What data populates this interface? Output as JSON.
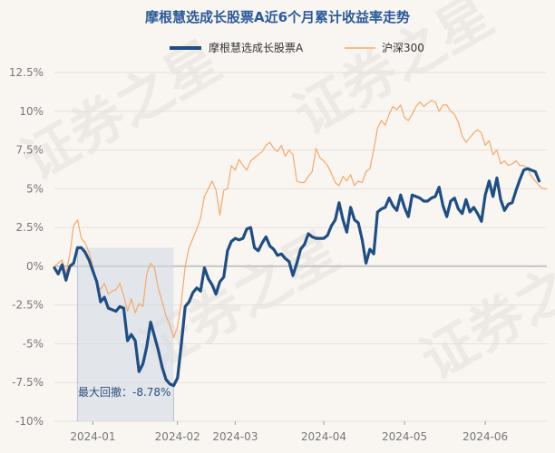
{
  "chart_data": {
    "type": "line",
    "title": "摩根慧选成长股票A近6个月累计收益率走势",
    "xlabel": "",
    "ylabel": "",
    "ylim": [
      -10,
      12.5
    ],
    "yticks": [
      -10,
      -7.5,
      -5,
      -2.5,
      0,
      2.5,
      5,
      7.5,
      10,
      12.5
    ],
    "ytick_labels": [
      "-10%",
      "-7.5%",
      "-5%",
      "-2.5%",
      "0%",
      "2.5%",
      "5%",
      "7.5%",
      "10%",
      "12.5%"
    ],
    "xlim": [
      0,
      128
    ],
    "xticks": [
      {
        "label": "2024-01",
        "index": 10
      },
      {
        "label": "2024-02",
        "index": 32
      },
      {
        "label": "2024-03",
        "index": 47
      },
      {
        "label": "2024-04",
        "index": 70
      },
      {
        "label": "2024-05",
        "index": 91
      },
      {
        "label": "2024-06",
        "index": 112
      }
    ],
    "grid": true,
    "legend_position": "top",
    "series": [
      {
        "name": "摩根慧选成长股票A",
        "color": "#1f4e85",
        "values": [
          -0.1,
          -0.5,
          0.1,
          -0.9,
          0.0,
          0.2,
          1.2,
          1.2,
          0.9,
          0.4,
          -0.3,
          -1.0,
          -2.3,
          -2.0,
          -2.7,
          -2.8,
          -2.9,
          -2.6,
          -2.7,
          -4.8,
          -4.4,
          -4.8,
          -6.8,
          -6.3,
          -5.2,
          -3.6,
          -4.5,
          -5.4,
          -6.5,
          -7.3,
          -7.6,
          -7.7,
          -7.2,
          -5.0,
          -2.6,
          -2.3,
          -1.7,
          -1.4,
          -1.6,
          -0.1,
          -0.8,
          -1.2,
          -1.8,
          -1.0,
          -0.7,
          1.0,
          1.6,
          1.8,
          1.7,
          1.8,
          2.4,
          2.5,
          1.2,
          1.0,
          1.5,
          1.9,
          1.3,
          1.1,
          0.7,
          0.8,
          0.5,
          0.3,
          -0.6,
          0.2,
          1.1,
          1.4,
          2.1,
          1.9,
          1.8,
          1.8,
          1.8,
          2.0,
          2.6,
          3.0,
          4.1,
          3.0,
          2.2,
          3.8,
          3.0,
          2.8,
          1.7,
          0.2,
          1.1,
          0.8,
          3.5,
          3.7,
          3.8,
          4.4,
          3.9,
          3.6,
          4.6,
          3.8,
          3.2,
          4.6,
          4.5,
          4.4,
          4.2,
          4.2,
          4.4,
          4.5,
          5.1,
          3.9,
          3.2,
          4.2,
          4.4,
          3.7,
          3.4,
          4.3,
          3.5,
          3.8,
          3.4,
          2.9,
          4.6,
          5.5,
          4.5,
          5.7,
          4.3,
          3.6,
          4.0,
          4.1,
          4.9,
          5.6,
          6.2,
          6.3,
          6.2,
          6.1,
          5.5
        ]
      },
      {
        "name": "沪深300",
        "color": "#f4a96a",
        "values": [
          0.0,
          0.2,
          0.4,
          -0.5,
          0.8,
          2.6,
          3.0,
          1.8,
          1.5,
          0.9,
          0.0,
          -1.2,
          -1.5,
          -1.1,
          -1.8,
          -1.6,
          -1.5,
          -1.1,
          -1.9,
          -2.9,
          -2.1,
          -3.0,
          -2.4,
          -2.6,
          -0.5,
          0.2,
          -0.1,
          -1.4,
          -2.3,
          -3.2,
          -3.8,
          -4.6,
          -3.9,
          -2.3,
          0.0,
          1.2,
          1.8,
          2.4,
          3.1,
          4.5,
          5.0,
          5.5,
          4.9,
          3.3,
          4.9,
          5.0,
          6.5,
          6.2,
          6.9,
          6.5,
          6.2,
          6.8,
          7.0,
          7.2,
          7.4,
          7.8,
          8.0,
          7.6,
          7.4,
          7.8,
          7.1,
          7.5,
          7.2,
          5.5,
          5.4,
          5.4,
          5.8,
          6.1,
          7.6,
          7.0,
          6.8,
          6.5,
          6.0,
          5.4,
          5.2,
          5.8,
          5.5,
          5.9,
          5.2,
          5.5,
          5.4,
          6.1,
          6.3,
          7.5,
          8.9,
          9.4,
          9.1,
          9.8,
          10.3,
          10.1,
          10.4,
          9.6,
          9.4,
          9.8,
          10.3,
          10.6,
          10.3,
          10.5,
          10.7,
          10.6,
          10.0,
          10.4,
          10.4,
          10.0,
          9.8,
          9.3,
          8.4,
          8.0,
          8.3,
          8.6,
          8.8,
          8.6,
          7.8,
          8.1,
          7.2,
          7.5,
          6.6,
          6.8,
          6.5,
          6.6,
          6.8,
          6.5,
          6.5,
          6.3,
          5.8,
          5.5,
          5.2,
          5.0,
          5.0
        ]
      }
    ],
    "annotations": {
      "max_drawdown_label": "最大回撤：-8.78%",
      "drawdown_start_index": 6,
      "drawdown_end_index": 31
    },
    "watermark": "证券之星"
  }
}
